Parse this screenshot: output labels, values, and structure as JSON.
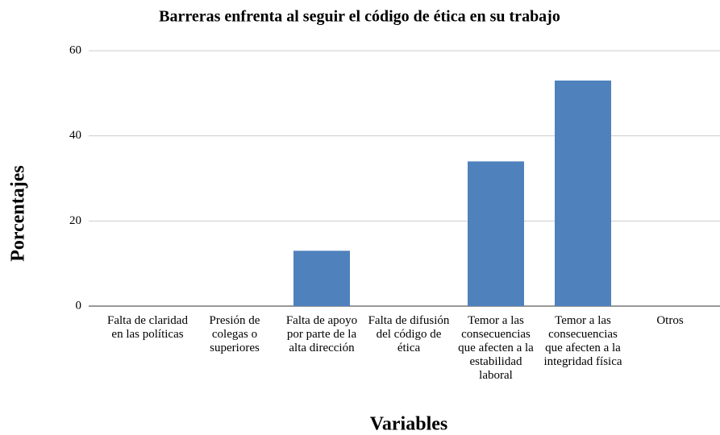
{
  "chart_data": {
    "type": "bar",
    "title": "Barreras enfrenta al seguir el código de ética en su trabajo",
    "x_label": "Variables",
    "y_label": "Porcentajes",
    "categories": [
      "Falta de claridad en las políticas",
      "Presión de colegas o superiores",
      "Falta de apoyo por parte de la alta dirección",
      "Falta de difusión del código de ética",
      "Temor a las consecuencias que afecten a la estabilidad laboral",
      "Temor a las consecuencias que afecten a la integridad física",
      "Otros"
    ],
    "values": [
      0,
      0,
      13,
      0,
      34,
      53,
      0
    ],
    "color": "#4f81bd",
    "ylim": [
      0,
      60
    ],
    "yticks": [
      0,
      20,
      40,
      60
    ],
    "grid": true
  }
}
